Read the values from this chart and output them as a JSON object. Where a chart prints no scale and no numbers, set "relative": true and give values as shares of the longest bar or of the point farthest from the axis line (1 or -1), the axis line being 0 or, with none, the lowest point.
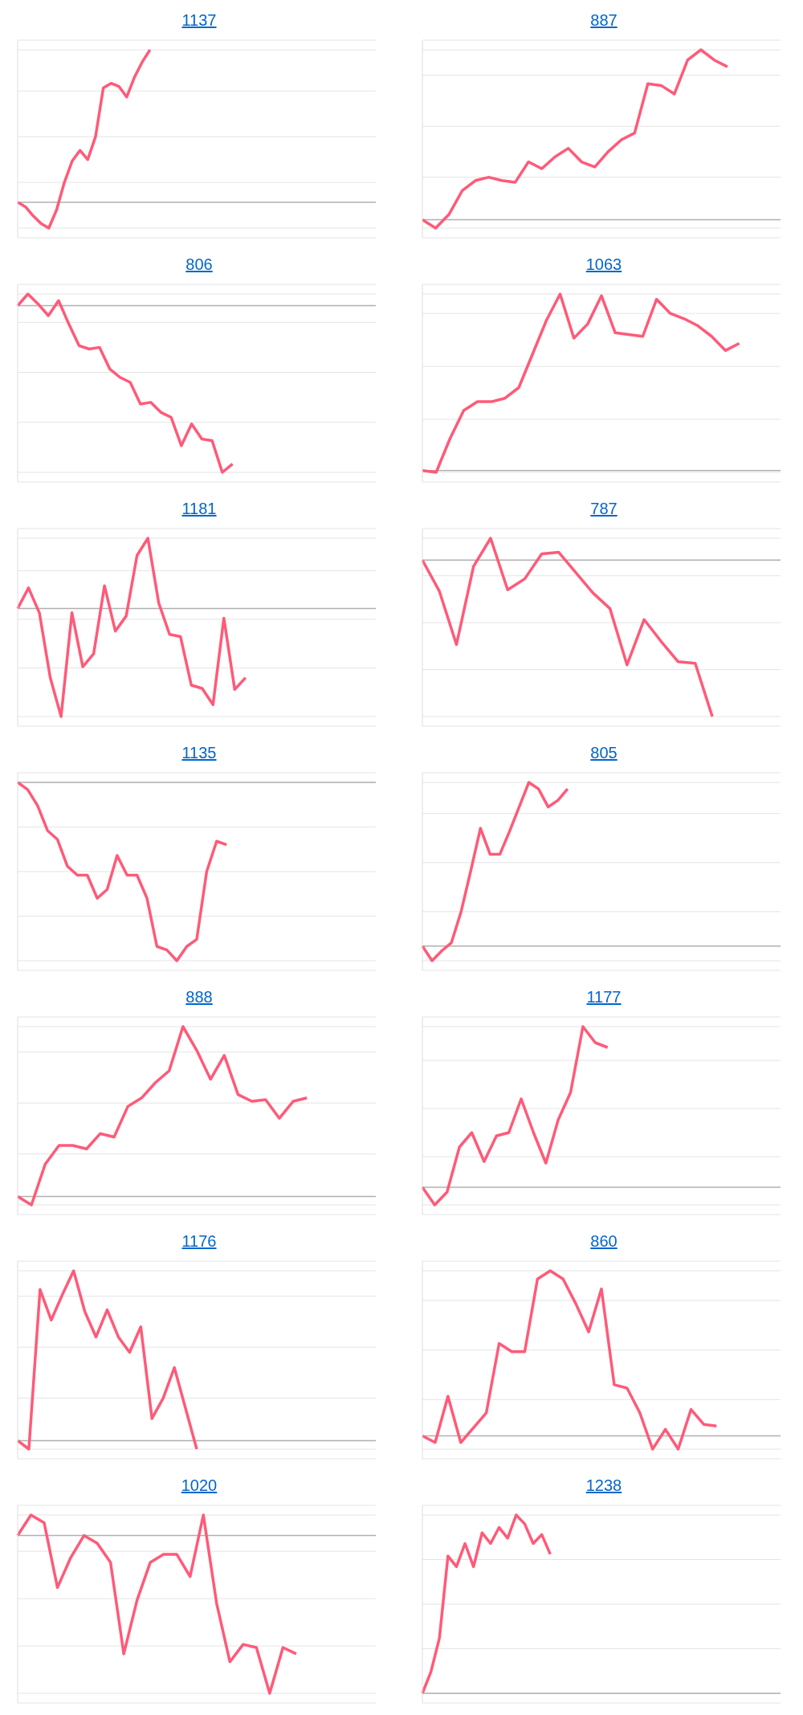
{
  "chart_data": [
    {
      "type": "line",
      "title": "1137",
      "relative": true,
      "grid": "y",
      "categories": [
        null,
        null,
        null,
        null,
        null,
        null,
        null,
        null,
        null,
        null,
        null,
        null,
        null,
        null,
        null,
        null,
        null,
        null,
        null,
        null,
        null,
        null,
        null,
        null,
        null,
        null,
        null,
        null,
        null,
        null,
        null,
        null,
        null,
        null,
        null,
        null,
        null,
        null,
        null,
        null,
        null,
        null,
        null,
        null,
        null,
        null,
        null
      ],
      "series": [
        {
          "color": "#ff5a78",
          "values": [
            0,
            -0.03,
            -0.09,
            -0.14,
            -0.17,
            -0.05,
            0.13,
            0.27,
            0.34,
            0.28,
            0.43,
            0.75,
            0.78,
            0.76,
            0.69,
            0.82,
            0.92,
            1,
            null,
            null,
            null,
            null,
            null,
            null,
            null,
            null,
            null,
            null,
            null,
            null,
            null,
            null,
            null,
            null,
            null,
            null,
            null,
            null,
            null,
            null,
            null,
            null,
            null,
            null,
            null,
            null,
            null
          ]
        }
      ]
    },
    {
      "type": "line",
      "title": "887",
      "relative": true,
      "grid": "y",
      "categories": [
        null,
        null,
        null,
        null,
        null,
        null,
        null,
        null,
        null,
        null,
        null,
        null,
        null,
        null,
        null,
        null,
        null,
        null,
        null,
        null,
        null,
        null,
        null,
        null,
        null,
        null,
        null,
        null
      ],
      "series": [
        {
          "color": "#ff5a78",
          "values": [
            0,
            -0.05,
            0.03,
            0.17,
            0.23,
            0.25,
            0.23,
            0.22,
            0.34,
            0.3,
            0.37,
            0.42,
            0.34,
            0.31,
            0.4,
            0.47,
            0.51,
            0.8,
            0.79,
            0.74,
            0.94,
            1,
            0.94,
            0.9,
            null,
            null,
            null,
            null
          ]
        }
      ]
    },
    {
      "type": "line",
      "title": "806",
      "relative": true,
      "grid": "y",
      "categories": [
        null,
        null,
        null,
        null,
        null,
        null,
        null,
        null,
        null,
        null,
        null,
        null,
        null,
        null,
        null,
        null,
        null,
        null,
        null,
        null,
        null,
        null,
        null,
        null,
        null,
        null,
        null,
        null,
        null,
        null,
        null,
        null,
        null,
        null,
        null,
        null
      ],
      "series": [
        {
          "color": "#ff5a78",
          "values": [
            0,
            0.07,
            0.01,
            -0.06,
            0.03,
            -0.11,
            -0.24,
            -0.26,
            -0.25,
            -0.38,
            -0.43,
            -0.46,
            -0.59,
            -0.58,
            -0.64,
            -0.67,
            -0.84,
            -0.71,
            -0.8,
            -0.81,
            -1,
            -0.95,
            null,
            null,
            null,
            null,
            null,
            null,
            null,
            null,
            null,
            null,
            null,
            null,
            null,
            null
          ]
        }
      ]
    },
    {
      "type": "line",
      "title": "1063",
      "relative": true,
      "grid": "y",
      "categories": [
        null,
        null,
        null,
        null,
        null,
        null,
        null,
        null,
        null,
        null,
        null,
        null,
        null,
        null,
        null,
        null,
        null,
        null,
        null,
        null,
        null,
        null,
        null,
        null,
        null,
        null,
        null
      ],
      "series": [
        {
          "color": "#ff5a78",
          "values": [
            0,
            -0.01,
            0.18,
            0.34,
            0.39,
            0.39,
            0.41,
            0.47,
            0.66,
            0.85,
            1,
            0.75,
            0.83,
            0.99,
            0.78,
            0.77,
            0.76,
            0.97,
            0.89,
            0.86,
            0.82,
            0.76,
            0.68,
            0.72,
            null,
            null,
            null
          ]
        }
      ]
    },
    {
      "type": "line",
      "title": "1181",
      "relative": true,
      "grid": "y",
      "categories": [
        null,
        null,
        null,
        null,
        null,
        null,
        null,
        null,
        null,
        null,
        null,
        null,
        null,
        null,
        null,
        null,
        null,
        null,
        null,
        null,
        null,
        null,
        null,
        null,
        null,
        null,
        null,
        null,
        null,
        null,
        null,
        null,
        null,
        null
      ],
      "series": [
        {
          "color": "#ff5a78",
          "values": [
            0,
            0.19,
            -0.04,
            -0.64,
            -1,
            -0.04,
            -0.54,
            -0.42,
            0.21,
            -0.21,
            -0.07,
            0.49,
            0.65,
            0.05,
            -0.24,
            -0.26,
            -0.71,
            -0.74,
            -0.89,
            -0.09,
            -0.75,
            -0.64,
            null,
            null,
            null,
            null,
            null,
            null,
            null,
            null,
            null,
            null,
            null,
            null
          ]
        }
      ]
    },
    {
      "type": "line",
      "title": "787",
      "relative": true,
      "grid": "y",
      "categories": [
        null,
        null,
        null,
        null,
        null,
        null,
        null,
        null,
        null,
        null,
        null,
        null,
        null,
        null,
        null,
        null,
        null,
        null,
        null,
        null,
        null,
        null
      ],
      "series": [
        {
          "color": "#ff5a78",
          "values": [
            0,
            -0.2,
            -0.54,
            -0.04,
            0.14,
            -0.19,
            -0.12,
            0.04,
            0.05,
            -0.08,
            -0.21,
            -0.31,
            -0.67,
            -0.38,
            -0.52,
            -0.65,
            -0.66,
            -1,
            null,
            null,
            null,
            null
          ]
        }
      ]
    },
    {
      "type": "line",
      "title": "1135",
      "relative": true,
      "grid": "y",
      "categories": [
        null,
        null,
        null,
        null,
        null,
        null,
        null,
        null,
        null,
        null,
        null,
        null,
        null,
        null,
        null,
        null,
        null,
        null,
        null,
        null,
        null,
        null,
        null,
        null,
        null,
        null,
        null,
        null,
        null,
        null,
        null,
        null,
        null,
        null,
        null,
        null,
        null
      ],
      "series": [
        {
          "color": "#ff5a78",
          "values": [
            0,
            -0.04,
            -0.13,
            -0.27,
            -0.32,
            -0.47,
            -0.52,
            -0.52,
            -0.65,
            -0.6,
            -0.41,
            -0.52,
            -0.52,
            -0.65,
            -0.92,
            -0.94,
            -1,
            -0.92,
            -0.88,
            -0.5,
            -0.33,
            -0.35,
            null,
            null,
            null,
            null,
            null,
            null,
            null,
            null,
            null,
            null,
            null,
            null,
            null,
            null,
            null
          ]
        }
      ]
    },
    {
      "type": "line",
      "title": "805",
      "relative": true,
      "grid": "y",
      "categories": [
        null,
        null,
        null,
        null,
        null,
        null,
        null,
        null,
        null,
        null,
        null,
        null,
        null,
        null,
        null,
        null,
        null,
        null,
        null,
        null,
        null,
        null,
        null,
        null,
        null,
        null,
        null,
        null,
        null,
        null,
        null,
        null,
        null,
        null,
        null,
        null,
        null,
        null
      ],
      "series": [
        {
          "color": "#ff5a78",
          "values": [
            0,
            -0.09,
            -0.03,
            0.02,
            0.21,
            0.46,
            0.72,
            0.56,
            0.56,
            0.7,
            0.85,
            1,
            0.96,
            0.85,
            0.89,
            0.96,
            null,
            null,
            null,
            null,
            null,
            null,
            null,
            null,
            null,
            null,
            null,
            null,
            null,
            null,
            null,
            null,
            null,
            null,
            null,
            null,
            null,
            null
          ]
        }
      ]
    },
    {
      "type": "line",
      "title": "888",
      "relative": true,
      "grid": "y",
      "categories": [
        null,
        null,
        null,
        null,
        null,
        null,
        null,
        null,
        null,
        null,
        null,
        null,
        null,
        null,
        null,
        null,
        null,
        null,
        null,
        null,
        null,
        null,
        null,
        null,
        null,
        null,
        null
      ],
      "series": [
        {
          "color": "#ff5a78",
          "values": [
            0,
            -0.05,
            0.19,
            0.3,
            0.3,
            0.28,
            0.37,
            0.35,
            0.53,
            0.58,
            0.67,
            0.74,
            1,
            0.86,
            0.69,
            0.83,
            0.6,
            0.56,
            0.57,
            0.46,
            0.56,
            0.58,
            null,
            null,
            null,
            null,
            null
          ]
        }
      ]
    },
    {
      "type": "line",
      "title": "1177",
      "relative": true,
      "grid": "y",
      "categories": [
        null,
        null,
        null,
        null,
        null,
        null,
        null,
        null,
        null,
        null,
        null,
        null,
        null,
        null,
        null,
        null,
        null,
        null,
        null,
        null,
        null,
        null,
        null,
        null,
        null,
        null,
        null,
        null,
        null,
        null
      ],
      "series": [
        {
          "color": "#ff5a78",
          "values": [
            0,
            -0.11,
            -0.03,
            0.25,
            0.34,
            0.16,
            0.32,
            0.34,
            0.55,
            0.34,
            0.15,
            0.42,
            0.59,
            1,
            0.9,
            0.87,
            null,
            null,
            null,
            null,
            null,
            null,
            null,
            null,
            null,
            null,
            null,
            null,
            null,
            null
          ]
        }
      ]
    },
    {
      "type": "line",
      "title": "1176",
      "relative": true,
      "grid": "y",
      "categories": [
        null,
        null,
        null,
        null,
        null,
        null,
        null,
        null,
        null,
        null,
        null,
        null,
        null,
        null,
        null,
        null,
        null,
        null,
        null,
        null,
        null,
        null,
        null,
        null,
        null,
        null,
        null,
        null,
        null,
        null,
        null,
        null,
        null
      ],
      "series": [
        {
          "color": "#ff5a78",
          "values": [
            0,
            -0.05,
            0.89,
            0.71,
            0.86,
            1,
            0.76,
            0.61,
            0.77,
            0.61,
            0.52,
            0.67,
            0.13,
            0.25,
            0.43,
            0.19,
            -0.05,
            null,
            null,
            null,
            null,
            null,
            null,
            null,
            null,
            null,
            null,
            null,
            null,
            null,
            null,
            null,
            null
          ]
        }
      ]
    },
    {
      "type": "line",
      "title": "860",
      "relative": true,
      "grid": "y",
      "categories": [
        null,
        null,
        null,
        null,
        null,
        null,
        null,
        null,
        null,
        null,
        null,
        null,
        null,
        null,
        null,
        null,
        null,
        null,
        null,
        null,
        null,
        null,
        null,
        null,
        null,
        null,
        null,
        null,
        null
      ],
      "series": [
        {
          "color": "#ff5a78",
          "values": [
            0,
            -0.04,
            0.24,
            -0.04,
            0.05,
            0.14,
            0.56,
            0.51,
            0.51,
            0.95,
            1,
            0.95,
            0.8,
            0.63,
            0.89,
            0.31,
            0.29,
            0.14,
            -0.08,
            0.04,
            -0.08,
            0.16,
            0.07,
            0.06,
            null,
            null,
            null,
            null,
            null
          ]
        }
      ]
    },
    {
      "type": "line",
      "title": "1020",
      "relative": true,
      "grid": "y",
      "categories": [
        null,
        null,
        null,
        null,
        null,
        null,
        null,
        null,
        null,
        null,
        null,
        null,
        null,
        null,
        null,
        null,
        null,
        null,
        null,
        null,
        null,
        null,
        null,
        null,
        null,
        null,
        null,
        null
      ],
      "series": [
        {
          "color": "#ff5a78",
          "values": [
            0,
            0.13,
            0.08,
            -0.33,
            -0.14,
            0,
            -0.05,
            -0.17,
            -0.75,
            -0.41,
            -0.17,
            -0.12,
            -0.12,
            -0.26,
            0.13,
            -0.43,
            -0.8,
            -0.69,
            -0.71,
            -1,
            -0.71,
            -0.75,
            null,
            null,
            null,
            null,
            null,
            null
          ]
        }
      ]
    },
    {
      "type": "line",
      "title": "1238",
      "relative": true,
      "grid": "y",
      "categories": [
        null,
        null,
        null,
        null,
        null,
        null,
        null,
        null,
        null,
        null,
        null,
        null,
        null,
        null,
        null,
        null,
        null,
        null,
        null,
        null,
        null,
        null,
        null,
        null,
        null,
        null,
        null,
        null,
        null,
        null,
        null,
        null,
        null,
        null,
        null,
        null,
        null,
        null,
        null,
        null,
        null,
        null,
        null
      ],
      "series": [
        {
          "color": "#ff5a78",
          "values": [
            0,
            0.12,
            0.31,
            0.77,
            0.71,
            0.84,
            0.71,
            0.9,
            0.84,
            0.93,
            0.87,
            1,
            0.95,
            0.84,
            0.89,
            0.78,
            null,
            null,
            null,
            null,
            null,
            null,
            null,
            null,
            null,
            null,
            null,
            null,
            null,
            null,
            null,
            null,
            null,
            null,
            null,
            null,
            null,
            null,
            null,
            null,
            null,
            null,
            null
          ]
        }
      ]
    }
  ]
}
